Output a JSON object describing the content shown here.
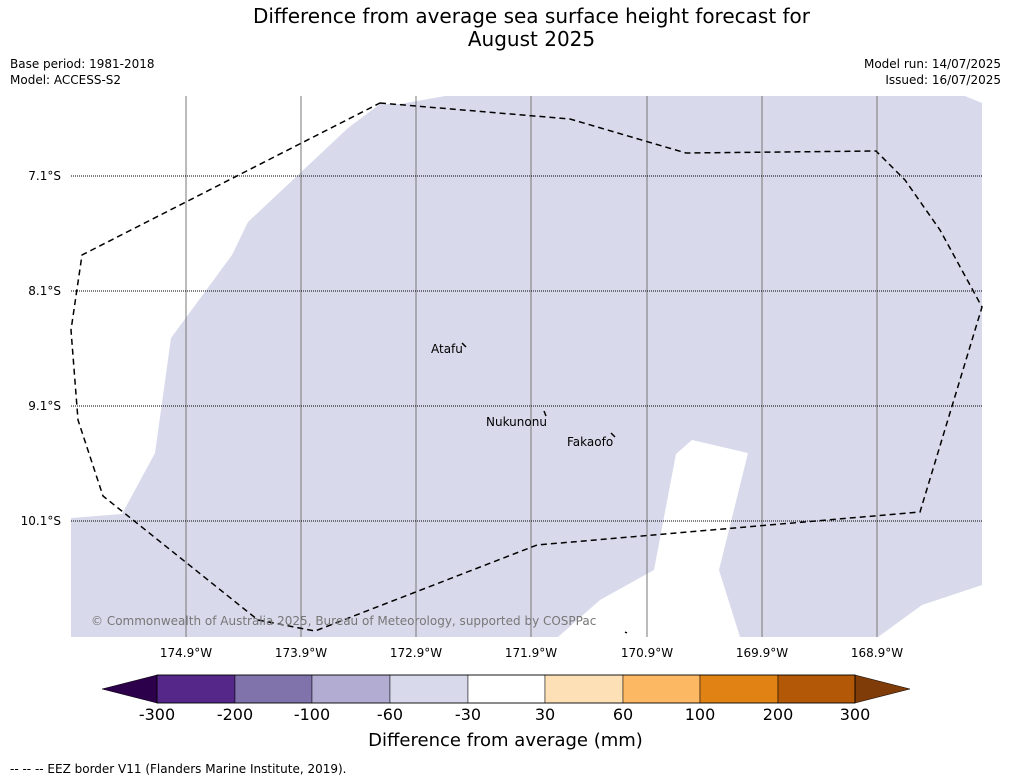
{
  "title_line1": "Difference from average sea surface height forecast for",
  "title_line2": "August 2025",
  "meta_left": {
    "base_period": "Base period: 1981-2018",
    "model": "Model: ACCESS-S2"
  },
  "meta_right": {
    "model_run": "Model run: 14/07/2025",
    "issued": "Issued: 16/07/2025"
  },
  "lat_labels": [
    "7.1°S",
    "8.1°S",
    "9.1°S",
    "10.1°S"
  ],
  "lon_labels": [
    "174.9°W",
    "173.9°W",
    "172.9°W",
    "171.9°W",
    "170.9°W",
    "169.9°W",
    "168.9°W"
  ],
  "places": {
    "atafu": "Atafu",
    "nukunonu": "Nukunonu",
    "fakaofo": "Fakaofo"
  },
  "copyright": "© Commonwealth of Australia 2025, Bureau of Meteorology, supported by COSPPac",
  "colorbar": {
    "ticks": [
      "-300",
      "-200",
      "-100",
      "-60",
      "-30",
      "30",
      "60",
      "100",
      "200",
      "300"
    ],
    "colors": [
      "#2d004b",
      "#542788",
      "#8073ac",
      "#b2abd2",
      "#d8daeb",
      "#ffffff",
      "#fee0b6",
      "#fdb863",
      "#e08214",
      "#b35806",
      "#7f3b08"
    ],
    "label": "Difference from average (mm)"
  },
  "legend_text": "--  --  -- EEZ border V11 (Flanders Marine Institute, 2019).",
  "map_fill": "#d8daeb"
}
